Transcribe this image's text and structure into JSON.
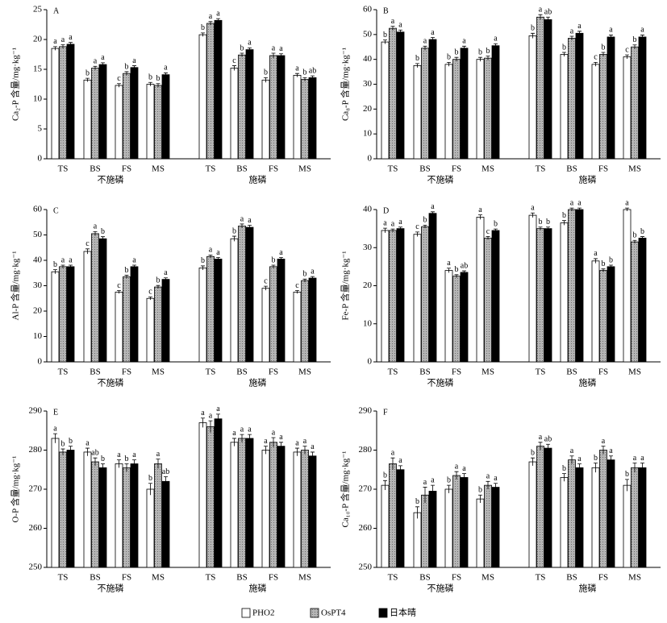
{
  "legend": [
    {
      "name": "PHO2",
      "color": "#ffffff"
    },
    {
      "name": "OsPT4",
      "color": "#a9a9a9"
    },
    {
      "name": "日本晴",
      "color": "#000000"
    }
  ],
  "chart_data": [
    {
      "type": "bar",
      "label": "A",
      "ylabel": "Ca₂-P 含量/mg·kg⁻¹",
      "categories": [
        "TS",
        "BS",
        "FS",
        "MS",
        "TS",
        "BS",
        "FS",
        "MS"
      ],
      "groups": [
        "不施磷",
        "施磷"
      ],
      "ylim": [
        0,
        25
      ],
      "yticks": [
        0,
        5,
        10,
        15,
        20,
        25
      ],
      "series": [
        {
          "color": "#ffffff",
          "values": [
            18.5,
            13.2,
            12.3,
            12.5,
            20.8,
            15.2,
            13.2,
            14.0
          ],
          "errors": [
            0.3,
            0.3,
            0.3,
            0.3,
            0.3,
            0.4,
            0.4,
            0.3
          ],
          "letters": [
            "a",
            "b",
            "c",
            "b",
            "b",
            "c",
            "b",
            "a"
          ]
        },
        {
          "color": "#a9a9a9",
          "values": [
            18.8,
            15.2,
            14.3,
            12.3,
            22.7,
            17.4,
            17.3,
            13.3
          ],
          "errors": [
            0.3,
            0.3,
            0.3,
            0.3,
            0.3,
            0.3,
            0.4,
            0.3
          ],
          "letters": [
            "a",
            "a",
            "b",
            "b",
            "a",
            "b",
            "a",
            "b"
          ]
        },
        {
          "color": "#000000",
          "values": [
            19.2,
            15.8,
            15.3,
            14.1,
            23.2,
            18.3,
            17.3,
            13.6
          ],
          "errors": [
            0.3,
            0.3,
            0.3,
            0.3,
            0.3,
            0.3,
            0.3,
            0.3
          ],
          "letters": [
            "a",
            "a",
            "a",
            "a",
            "a",
            "a",
            "a",
            "ab"
          ]
        }
      ]
    },
    {
      "type": "bar",
      "label": "B",
      "ylabel": "Ca₈-P 含量/mg·kg⁻¹",
      "categories": [
        "TS",
        "BS",
        "FS",
        "MS",
        "TS",
        "BS",
        "FS",
        "MS"
      ],
      "groups": [
        "不施磷",
        "施磷"
      ],
      "ylim": [
        0,
        60
      ],
      "yticks": [
        0,
        10,
        20,
        30,
        40,
        50,
        60
      ],
      "series": [
        {
          "color": "#ffffff",
          "values": [
            47,
            37.5,
            38,
            40,
            49.5,
            42,
            38,
            41
          ],
          "errors": [
            0.8,
            0.8,
            0.8,
            0.8,
            1,
            0.8,
            0.8,
            0.8
          ],
          "letters": [
            "b",
            "b",
            "b",
            "b",
            "b",
            "b",
            "c",
            "c"
          ]
        },
        {
          "color": "#a9a9a9",
          "values": [
            52.5,
            44.5,
            40,
            40.5,
            57,
            48.5,
            42,
            45
          ],
          "errors": [
            0.8,
            0.8,
            0.8,
            0.8,
            1,
            0.8,
            0.8,
            0.8
          ],
          "letters": [
            "a",
            "a",
            "b",
            "b",
            "a",
            "a",
            "b",
            "b"
          ]
        },
        {
          "color": "#000000",
          "values": [
            51,
            48,
            44.5,
            45.5,
            56,
            50.5,
            49,
            49
          ],
          "errors": [
            0.8,
            0.8,
            0.8,
            0.8,
            1,
            0.8,
            0.8,
            0.8
          ],
          "letters": [
            "a",
            "a",
            "a",
            "a",
            "ab",
            "a",
            "a",
            "a"
          ]
        }
      ]
    },
    {
      "type": "bar",
      "label": "C",
      "ylabel": "Al-P 含量/mg·kg⁻¹",
      "categories": [
        "TS",
        "BS",
        "FS",
        "MS",
        "TS",
        "BS",
        "FS",
        "MS"
      ],
      "groups": [
        "不施磷",
        "施磷"
      ],
      "ylim": [
        0,
        60
      ],
      "yticks": [
        0,
        10,
        20,
        30,
        40,
        50,
        60
      ],
      "series": [
        {
          "color": "#ffffff",
          "values": [
            35.5,
            43.5,
            27.5,
            25,
            37,
            48.5,
            29,
            27.5
          ],
          "errors": [
            0.8,
            1,
            0.6,
            0.6,
            0.8,
            1,
            0.8,
            0.6
          ],
          "letters": [
            "b",
            "c",
            "c",
            "c",
            "b",
            "b",
            "c",
            "c"
          ]
        },
        {
          "color": "#a9a9a9",
          "values": [
            37.5,
            50.5,
            33.5,
            29.5,
            41.5,
            53.5,
            37.5,
            32
          ],
          "errors": [
            0.6,
            0.8,
            0.6,
            0.6,
            0.6,
            0.8,
            0.6,
            0.6
          ],
          "letters": [
            "a",
            "a",
            "b",
            "b",
            "a",
            "a",
            "b",
            "b"
          ]
        },
        {
          "color": "#000000",
          "values": [
            37.5,
            48.5,
            37.5,
            32.5,
            40.5,
            53,
            40.5,
            33
          ],
          "errors": [
            0.6,
            0.8,
            0.6,
            0.6,
            0.6,
            0.8,
            0.6,
            0.6
          ],
          "letters": [
            "a",
            "b",
            "a",
            "a",
            "a",
            "a",
            "a",
            "a"
          ]
        }
      ]
    },
    {
      "type": "bar",
      "label": "D",
      "ylabel": "Fe-P 含量/mg·kg⁻¹",
      "categories": [
        "TS",
        "BS",
        "FS",
        "MS",
        "TS",
        "BS",
        "FS",
        "MS"
      ],
      "groups": [
        "不施磷",
        "施磷"
      ],
      "ylim": [
        0,
        40
      ],
      "yticks": [
        0,
        10,
        20,
        30,
        40
      ],
      "series": [
        {
          "color": "#ffffff",
          "values": [
            34.5,
            33.5,
            24,
            38,
            38.5,
            36.5,
            26.5,
            40
          ],
          "errors": [
            0.6,
            0.6,
            0.6,
            0.6,
            0.6,
            0.6,
            0.6,
            0.4
          ],
          "letters": [
            "a",
            "c",
            "a",
            "a",
            "a",
            "b",
            "a",
            "a"
          ]
        },
        {
          "color": "#a9a9a9",
          "values": [
            34.5,
            35.5,
            22.5,
            32.5,
            35,
            40,
            24,
            31.5
          ],
          "errors": [
            0.4,
            0.4,
            0.4,
            0.4,
            0.4,
            0.4,
            0.4,
            0.4
          ],
          "letters": [
            "a",
            "b",
            "b",
            "c",
            "b",
            "a",
            "b",
            "b"
          ]
        },
        {
          "color": "#000000",
          "values": [
            35,
            39,
            23.5,
            34.5,
            35,
            40,
            25,
            32.5
          ],
          "errors": [
            0.4,
            0.4,
            0.4,
            0.4,
            0.4,
            0.4,
            0.4,
            0.4
          ],
          "letters": [
            "a",
            "a",
            "ab",
            "b",
            "b",
            "a",
            "b",
            "b"
          ]
        }
      ]
    },
    {
      "type": "bar",
      "label": "E",
      "ylabel": "O-P 含量/mg·kg⁻¹",
      "categories": [
        "TS",
        "BS",
        "FS",
        "MS",
        "TS",
        "BS",
        "FS",
        "MS"
      ],
      "groups": [
        "不施磷",
        "施磷"
      ],
      "ylim": [
        250,
        290
      ],
      "yticks": [
        250,
        260,
        270,
        280,
        290
      ],
      "series": [
        {
          "color": "#ffffff",
          "values": [
            283,
            279.5,
            276.5,
            270,
            287,
            282,
            280,
            279.5
          ],
          "errors": [
            1.2,
            1,
            1,
            1.5,
            1.2,
            1,
            1,
            1
          ],
          "letters": [
            "a",
            "a",
            "a",
            "b",
            "a",
            "a",
            "a",
            "a"
          ]
        },
        {
          "color": "#a9a9a9",
          "values": [
            279.5,
            277,
            275.5,
            276.5,
            286,
            283,
            282,
            280
          ],
          "errors": [
            0.8,
            1,
            1,
            1.2,
            1.5,
            1,
            1.2,
            1
          ],
          "letters": [
            "b",
            "ab",
            "b",
            "a",
            "a",
            "a",
            "a",
            "a"
          ]
        },
        {
          "color": "#000000",
          "values": [
            280,
            275.5,
            276.5,
            272,
            288,
            283,
            281,
            278.5
          ],
          "errors": [
            1,
            1,
            1,
            1.2,
            1.2,
            1,
            1,
            1
          ],
          "letters": [
            "b",
            "b",
            "a",
            "ab",
            "a",
            "a",
            "a",
            "a"
          ]
        }
      ]
    },
    {
      "type": "bar",
      "label": "F",
      "ylabel": "Ca₁₀-P 含量/mg·kg⁻¹",
      "categories": [
        "TS",
        "BS",
        "FS",
        "MS",
        "TS",
        "BS",
        "FS",
        "MS"
      ],
      "groups": [
        "不施磷",
        "施磷"
      ],
      "ylim": [
        250,
        290
      ],
      "yticks": [
        250,
        260,
        270,
        280,
        290
      ],
      "series": [
        {
          "color": "#ffffff",
          "values": [
            271,
            264,
            270,
            267.5,
            277,
            273,
            275.5,
            271
          ],
          "errors": [
            1.2,
            1.5,
            1,
            1,
            1,
            1,
            1.2,
            1.5
          ],
          "letters": [
            "b",
            "b",
            "b",
            "b",
            "b",
            "b",
            "b",
            "b"
          ]
        },
        {
          "color": "#a9a9a9",
          "values": [
            276.5,
            268.5,
            273.5,
            271,
            281,
            277.5,
            280,
            275.5
          ],
          "errors": [
            1.5,
            2,
            1,
            1,
            1,
            1,
            1,
            1.2
          ],
          "letters": [
            "a",
            "a",
            "a",
            "a",
            "a",
            "a",
            "a",
            "a"
          ]
        },
        {
          "color": "#000000",
          "values": [
            275,
            269.5,
            273,
            270.5,
            280.5,
            275.5,
            277.5,
            275.5
          ],
          "errors": [
            1,
            1.5,
            1,
            1,
            1,
            1,
            1,
            1.2
          ],
          "letters": [
            "a",
            "a",
            "a",
            "a",
            "ab",
            "a",
            "a",
            "a"
          ]
        }
      ]
    }
  ]
}
